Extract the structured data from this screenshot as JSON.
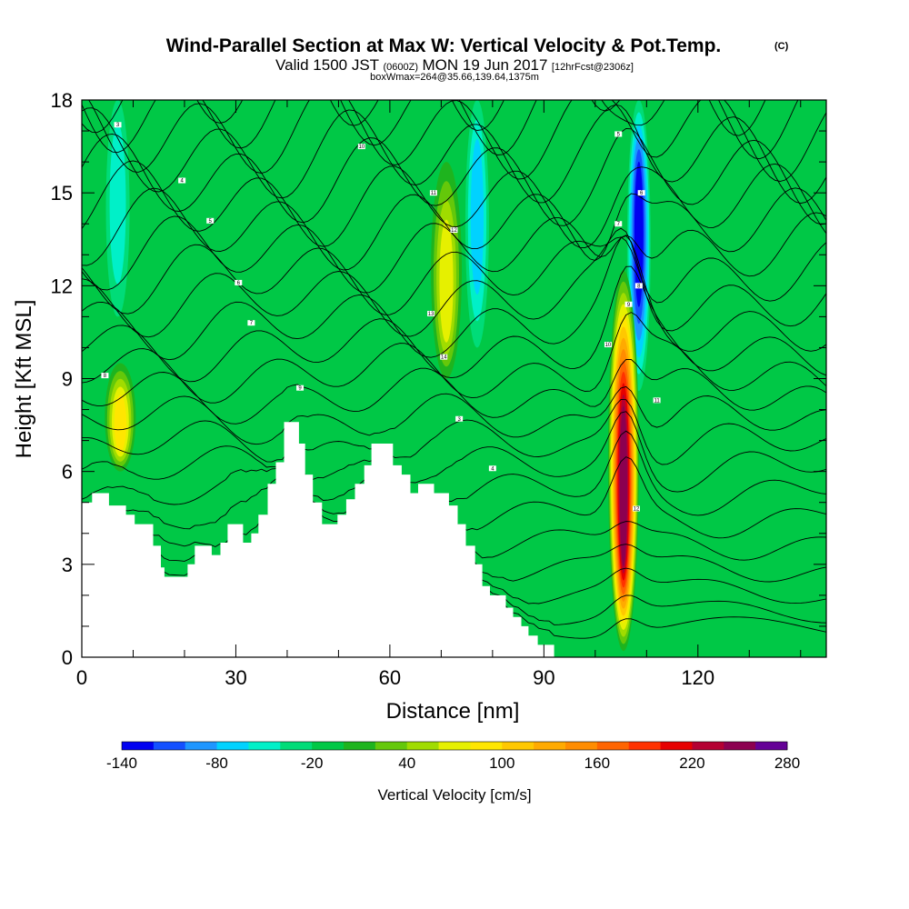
{
  "chart_data": {
    "type": "heatmap",
    "title": "Wind-Parallel Section at Max W: Vertical Velocity & Pot.Temp.",
    "copyright_mark": "(C)",
    "subtitle": {
      "valid": "Valid 1500 JST",
      "utc": "(0600Z)",
      "date": "MON 19 Jun 2017",
      "forecast": "[12hrFcst@2306z]"
    },
    "box_info": "boxWmax=264@35.66,139.64,1375m",
    "xlabel": "Distance [nm]",
    "ylabel": "Height [Kft MSL]",
    "xlim": [
      0,
      145
    ],
    "ylim": [
      0,
      18
    ],
    "x_ticks": [
      "0",
      "30",
      "60",
      "90",
      "120"
    ],
    "y_ticks": [
      "0",
      "3",
      "6",
      "9",
      "12",
      "15",
      "18"
    ],
    "colorbar": {
      "title": "Vertical Velocity [cm/s]",
      "range": [
        -140,
        280
      ],
      "step": 20,
      "tick_labels": [
        "-140",
        "-80",
        "-20",
        "40",
        "100",
        "160",
        "220",
        "280"
      ],
      "colors": [
        "#0000f0",
        "#1450ff",
        "#1e96ff",
        "#00d2ff",
        "#00f0c8",
        "#00dc78",
        "#00c846",
        "#1eb41e",
        "#64c80a",
        "#a0dc00",
        "#e6f000",
        "#ffe600",
        "#ffc800",
        "#ffaa00",
        "#ff8c00",
        "#ff6400",
        "#ff3200",
        "#e60000",
        "#b40032",
        "#8c0050",
        "#640096"
      ]
    },
    "background_value_cm_s": -5,
    "features": [
      {
        "kind": "downdraft",
        "x_nm": 108.5,
        "bottom_kft": 8.6,
        "top_kft": 18,
        "peak_cm_s": -140
      },
      {
        "kind": "updraft",
        "x_nm": 105.5,
        "bottom_kft": 0.2,
        "top_kft": 12.5,
        "peak_cm_s": 264
      },
      {
        "kind": "updraft",
        "x_nm": 71,
        "bottom_kft": 9,
        "top_kft": 16,
        "peak_cm_s": 90
      },
      {
        "kind": "updraft",
        "x_nm": 7.5,
        "bottom_kft": 6,
        "top_kft": 9.5,
        "peak_cm_s": 95
      },
      {
        "kind": "downdraft",
        "x_nm": 77,
        "bottom_kft": 10,
        "top_kft": 18,
        "peak_cm_s": -70
      },
      {
        "kind": "downdraft",
        "x_nm": 7,
        "bottom_kft": 11,
        "top_kft": 18,
        "peak_cm_s": -60
      }
    ],
    "terrain_kft": [
      [
        0,
        5.0
      ],
      [
        2,
        5.0
      ],
      [
        2,
        5.3
      ],
      [
        5.3,
        5.3
      ],
      [
        5.3,
        4.9
      ],
      [
        8.6,
        4.9
      ],
      [
        8.6,
        4.6
      ],
      [
        10.3,
        4.6
      ],
      [
        10.3,
        4.3
      ],
      [
        13.9,
        4.3
      ],
      [
        13.9,
        3.6
      ],
      [
        15.4,
        3.6
      ],
      [
        15.4,
        2.9
      ],
      [
        16.1,
        2.9
      ],
      [
        16.1,
        2.6
      ],
      [
        20.6,
        2.6
      ],
      [
        20.6,
        3.0
      ],
      [
        22.0,
        3.0
      ],
      [
        22.0,
        3.6
      ],
      [
        25.3,
        3.6
      ],
      [
        25.3,
        3.3
      ],
      [
        27.0,
        3.3
      ],
      [
        27.0,
        3.7
      ],
      [
        28.4,
        3.7
      ],
      [
        28.4,
        4.3
      ],
      [
        31.4,
        4.3
      ],
      [
        31.4,
        3.7
      ],
      [
        33.0,
        3.7
      ],
      [
        33.0,
        4.0
      ],
      [
        34.4,
        4.0
      ],
      [
        34.4,
        4.6
      ],
      [
        36.2,
        4.6
      ],
      [
        36.2,
        5.6
      ],
      [
        37.8,
        5.6
      ],
      [
        37.8,
        6.3
      ],
      [
        39.4,
        6.3
      ],
      [
        39.4,
        7.6
      ],
      [
        42.3,
        7.6
      ],
      [
        42.3,
        6.9
      ],
      [
        43.5,
        6.9
      ],
      [
        43.5,
        5.9
      ],
      [
        45.0,
        5.9
      ],
      [
        45.0,
        5.0
      ],
      [
        46.8,
        5.0
      ],
      [
        46.8,
        4.3
      ],
      [
        49.8,
        4.3
      ],
      [
        49.8,
        4.6
      ],
      [
        51.5,
        4.6
      ],
      [
        51.5,
        5.1
      ],
      [
        53.2,
        5.1
      ],
      [
        53.2,
        5.6
      ],
      [
        55.0,
        5.6
      ],
      [
        55.0,
        6.2
      ],
      [
        56.4,
        6.2
      ],
      [
        56.4,
        6.9
      ],
      [
        60.6,
        6.9
      ],
      [
        60.6,
        6.2
      ],
      [
        62.3,
        6.2
      ],
      [
        62.3,
        5.9
      ],
      [
        64.0,
        5.9
      ],
      [
        64.0,
        5.3
      ],
      [
        65.5,
        5.3
      ],
      [
        65.5,
        5.6
      ],
      [
        68.6,
        5.6
      ],
      [
        68.6,
        5.3
      ],
      [
        71.5,
        5.3
      ],
      [
        71.5,
        4.9
      ],
      [
        73.2,
        4.9
      ],
      [
        73.2,
        4.3
      ],
      [
        74.8,
        4.3
      ],
      [
        74.8,
        3.6
      ],
      [
        76.6,
        3.6
      ],
      [
        76.6,
        3.0
      ],
      [
        78.0,
        3.0
      ],
      [
        78.0,
        2.3
      ],
      [
        79.5,
        2.3
      ],
      [
        79.5,
        2.0
      ],
      [
        82.6,
        2.0
      ],
      [
        82.6,
        1.6
      ],
      [
        84.0,
        1.6
      ],
      [
        84.0,
        1.3
      ],
      [
        85.6,
        1.3
      ],
      [
        85.6,
        1.0
      ],
      [
        87.0,
        1.0
      ],
      [
        87.0,
        0.7
      ],
      [
        88.8,
        0.7
      ],
      [
        88.8,
        0.4
      ],
      [
        92.0,
        0.4
      ],
      [
        92.0,
        0.0
      ],
      [
        94.0,
        0.0
      ]
    ],
    "isentrope_labels": [
      "3",
      "4",
      "5",
      "6",
      "7",
      "8",
      "9",
      "10",
      "11",
      "12",
      "13",
      "14"
    ],
    "isentrope_label_positions": [
      [
        7,
        17.2
      ],
      [
        19.5,
        15.4
      ],
      [
        25,
        14.1
      ],
      [
        30.5,
        12.1
      ],
      [
        33,
        10.8
      ],
      [
        4.5,
        9.1
      ],
      [
        42.5,
        8.7
      ],
      [
        54.5,
        16.5
      ],
      [
        68.5,
        15.0
      ],
      [
        72.5,
        13.8
      ],
      [
        68,
        11.1
      ],
      [
        70.5,
        9.7
      ],
      [
        73.5,
        7.7
      ],
      [
        80,
        6.1
      ],
      [
        104.5,
        16.9
      ],
      [
        109,
        15.0
      ],
      [
        104.5,
        14.0
      ],
      [
        108.5,
        12.0
      ],
      [
        106.5,
        11.4
      ],
      [
        102.5,
        10.1
      ],
      [
        112,
        8.3
      ],
      [
        108,
        4.8
      ]
    ]
  }
}
